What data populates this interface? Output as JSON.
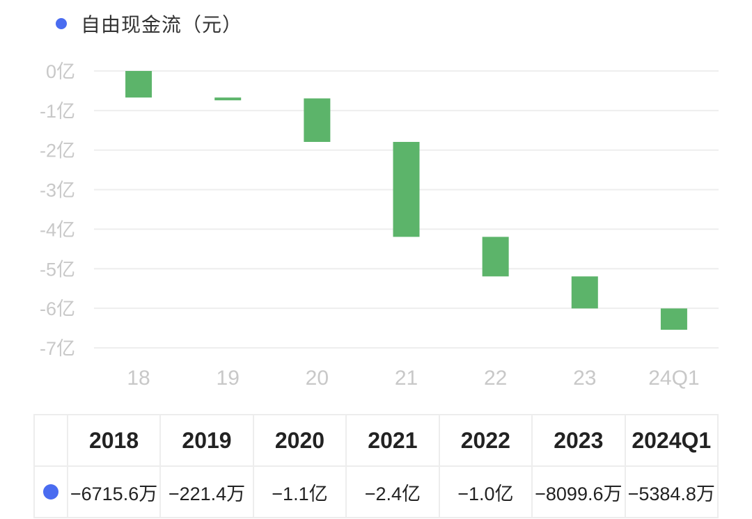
{
  "colors": {
    "bar": "#5cb46a",
    "legend_dot": "#4a6cf0",
    "grid": "#eeeeee"
  },
  "legend": {
    "label": "自由现金流（元）"
  },
  "chart_data": {
    "type": "bar",
    "subtype": "waterfall",
    "title": "",
    "series_name": "自由现金流（元）",
    "categories": [
      "18",
      "19",
      "20",
      "21",
      "22",
      "23",
      "24Q1"
    ],
    "values_yi": [
      -0.6716,
      -0.0221,
      -1.1,
      -2.4,
      -1.0,
      -0.81,
      -0.5385
    ],
    "y_tick_labels": [
      "0亿",
      "-1亿",
      "-2亿",
      "-3亿",
      "-4亿",
      "-5亿",
      "-6亿",
      "-7亿"
    ],
    "y_ticks": [
      0,
      -1,
      -2,
      -3,
      -4,
      -5,
      -6,
      -7
    ],
    "ylim": [
      -7,
      0
    ],
    "grid": true
  },
  "table": {
    "headers": [
      "2018",
      "2019",
      "2020",
      "2021",
      "2022",
      "2023",
      "2024Q1"
    ],
    "values": [
      "−6715.6万",
      "−221.4万",
      "−1.1亿",
      "−2.4亿",
      "−1.0亿",
      "−8099.6万",
      "−5384.8万"
    ]
  }
}
